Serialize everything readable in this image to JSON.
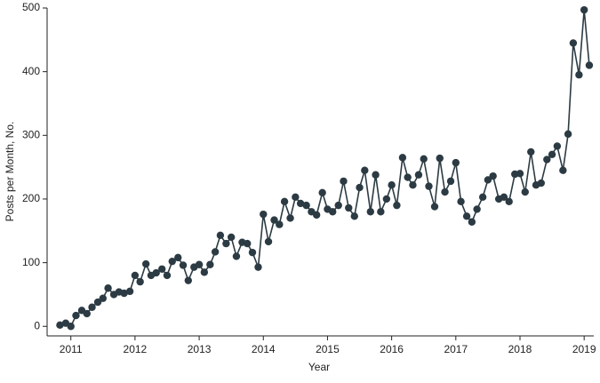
{
  "chart_data": {
    "type": "line",
    "xlabel": "Year",
    "ylabel": "Posts per Month, No.",
    "x": [
      2010.83,
      2010.92,
      2011.0,
      2011.08,
      2011.17,
      2011.25,
      2011.33,
      2011.42,
      2011.5,
      2011.58,
      2011.67,
      2011.75,
      2011.83,
      2011.92,
      2012.0,
      2012.08,
      2012.17,
      2012.25,
      2012.33,
      2012.42,
      2012.5,
      2012.58,
      2012.67,
      2012.75,
      2012.83,
      2012.92,
      2013.0,
      2013.08,
      2013.17,
      2013.25,
      2013.33,
      2013.42,
      2013.5,
      2013.58,
      2013.67,
      2013.75,
      2013.83,
      2013.92,
      2014.0,
      2014.08,
      2014.17,
      2014.25,
      2014.33,
      2014.42,
      2014.5,
      2014.58,
      2014.67,
      2014.75,
      2014.83,
      2014.92,
      2015.0,
      2015.08,
      2015.17,
      2015.25,
      2015.33,
      2015.42,
      2015.5,
      2015.58,
      2015.67,
      2015.75,
      2015.83,
      2015.92,
      2016.0,
      2016.08,
      2016.17,
      2016.25,
      2016.33,
      2016.42,
      2016.5,
      2016.58,
      2016.67,
      2016.75,
      2016.83,
      2016.92,
      2017.0,
      2017.08,
      2017.17,
      2017.25,
      2017.33,
      2017.42,
      2017.5,
      2017.58,
      2017.67,
      2017.75,
      2017.83,
      2017.92,
      2018.0,
      2018.08,
      2018.17,
      2018.25,
      2018.33,
      2018.42,
      2018.5,
      2018.58,
      2018.67,
      2018.75,
      2018.83,
      2018.92,
      2019.0,
      2019.08
    ],
    "series": [
      {
        "name": "Posts",
        "color": "#2c3b43",
        "values": [
          2,
          5,
          0,
          17,
          25,
          20,
          30,
          38,
          44,
          60,
          50,
          54,
          52,
          55,
          80,
          70,
          98,
          80,
          84,
          90,
          80,
          102,
          108,
          96,
          72,
          93,
          97,
          85,
          97,
          117,
          143,
          130,
          140,
          110,
          132,
          130,
          116,
          93,
          176,
          133,
          167,
          160,
          196,
          170,
          203,
          193,
          190,
          180,
          175,
          210,
          184,
          180,
          190,
          228,
          186,
          173,
          218,
          245,
          180,
          238,
          180,
          200,
          222,
          190,
          265,
          234,
          222,
          238,
          263,
          220,
          188,
          264,
          211,
          228,
          257,
          196,
          173,
          164,
          184,
          203,
          230,
          236,
          200,
          203,
          196,
          239,
          240,
          211,
          274,
          222,
          225,
          262,
          270,
          283,
          245,
          302,
          445,
          395,
          497,
          410
        ]
      }
    ],
    "xlim": [
      2010.63,
      2019.15
    ],
    "xticks": [
      2011,
      2012,
      2013,
      2014,
      2015,
      2016,
      2017,
      2018,
      2019
    ],
    "ylim": [
      -15,
      500
    ],
    "yticks": [
      0,
      100,
      200,
      300,
      400,
      500
    ]
  }
}
